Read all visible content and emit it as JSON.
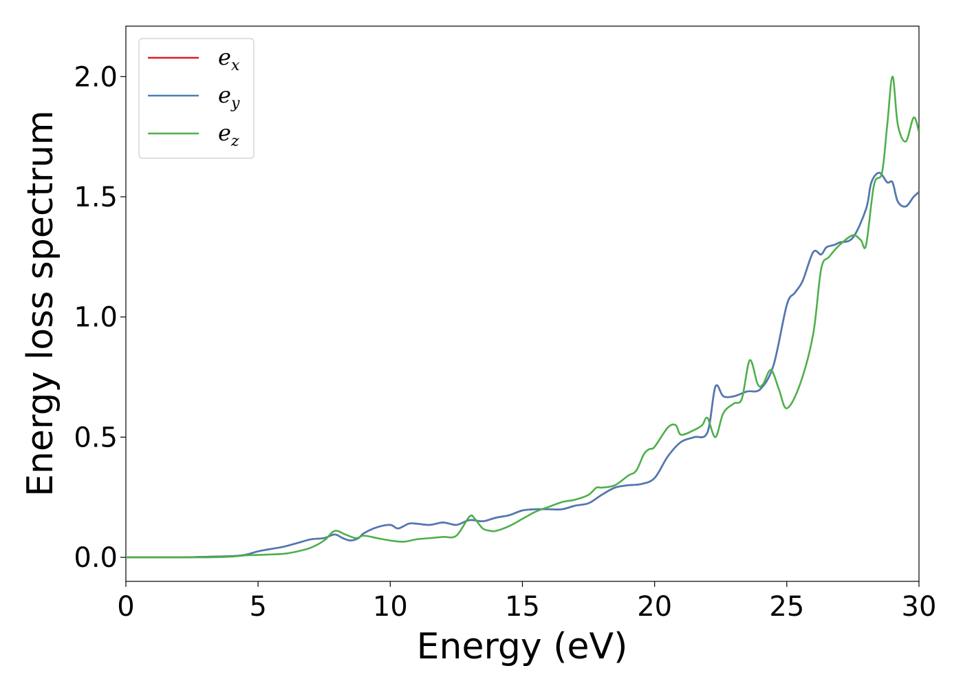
{
  "chart_data": {
    "type": "line",
    "title": "",
    "xlabel": "Energy (eV)",
    "ylabel": "Energy loss spectrum",
    "xlim": [
      0,
      30
    ],
    "ylim": [
      -0.1,
      2.21
    ],
    "xticks": [
      0,
      5,
      10,
      15,
      20,
      25,
      30
    ],
    "yticks": [
      0.0,
      0.5,
      1.0,
      1.5,
      2.0
    ],
    "xtick_labels": [
      "0",
      "5",
      "10",
      "15",
      "20",
      "25",
      "30"
    ],
    "ytick_labels": [
      "0.0",
      "0.5",
      "1.0",
      "1.5",
      "2.0"
    ],
    "grid": false,
    "legend_position": "top-left",
    "series": [
      {
        "name": "e_x",
        "legend_base": "e",
        "legend_sub": "x",
        "color": "#e41a1c",
        "x": [
          0,
          2,
          3,
          4,
          4.5,
          5,
          5.5,
          6,
          6.5,
          7,
          7.5,
          7.9,
          8.2,
          8.5,
          8.8,
          9,
          9.5,
          10,
          10.3,
          10.7,
          11,
          11.5,
          12,
          12.5,
          13,
          13.5,
          14,
          14.5,
          15,
          15.5,
          16,
          16.5,
          17,
          17.5,
          18,
          18.5,
          19,
          19.5,
          20,
          20.5,
          21,
          21.5,
          22,
          22.3,
          22.6,
          23,
          23.5,
          24,
          24.5,
          25,
          25.3,
          25.6,
          26,
          26.3,
          26.5,
          26.8,
          27,
          27.5,
          28,
          28.2,
          28.5,
          28.8,
          29,
          29.2,
          29.5,
          29.8,
          30
        ],
        "y": [
          0.0,
          0.0,
          0.002,
          0.005,
          0.01,
          0.025,
          0.035,
          0.045,
          0.06,
          0.075,
          0.08,
          0.095,
          0.08,
          0.07,
          0.08,
          0.1,
          0.125,
          0.135,
          0.12,
          0.14,
          0.14,
          0.135,
          0.145,
          0.135,
          0.155,
          0.15,
          0.165,
          0.175,
          0.195,
          0.2,
          0.2,
          0.2,
          0.215,
          0.225,
          0.26,
          0.29,
          0.3,
          0.305,
          0.33,
          0.42,
          0.48,
          0.5,
          0.52,
          0.71,
          0.67,
          0.67,
          0.69,
          0.7,
          0.8,
          1.05,
          1.1,
          1.15,
          1.27,
          1.26,
          1.29,
          1.3,
          1.31,
          1.33,
          1.45,
          1.56,
          1.6,
          1.56,
          1.56,
          1.48,
          1.46,
          1.5,
          1.52
        ]
      },
      {
        "name": "e_y",
        "legend_base": "e",
        "legend_sub": "y",
        "color": "#4a7bb7",
        "x": [
          0,
          2,
          3,
          4,
          4.5,
          5,
          5.5,
          6,
          6.5,
          7,
          7.5,
          7.9,
          8.2,
          8.5,
          8.8,
          9,
          9.5,
          10,
          10.3,
          10.7,
          11,
          11.5,
          12,
          12.5,
          13,
          13.5,
          14,
          14.5,
          15,
          15.5,
          16,
          16.5,
          17,
          17.5,
          18,
          18.5,
          19,
          19.5,
          20,
          20.5,
          21,
          21.5,
          22,
          22.3,
          22.6,
          23,
          23.5,
          24,
          24.5,
          25,
          25.3,
          25.6,
          26,
          26.3,
          26.5,
          26.8,
          27,
          27.5,
          28,
          28.2,
          28.5,
          28.8,
          29,
          29.2,
          29.5,
          29.8,
          30
        ],
        "y": [
          0.0,
          0.0,
          0.002,
          0.005,
          0.01,
          0.025,
          0.035,
          0.045,
          0.06,
          0.075,
          0.08,
          0.095,
          0.08,
          0.07,
          0.08,
          0.1,
          0.125,
          0.135,
          0.12,
          0.14,
          0.14,
          0.135,
          0.145,
          0.135,
          0.155,
          0.15,
          0.165,
          0.175,
          0.195,
          0.2,
          0.2,
          0.2,
          0.215,
          0.225,
          0.26,
          0.29,
          0.3,
          0.305,
          0.33,
          0.42,
          0.48,
          0.5,
          0.52,
          0.71,
          0.67,
          0.67,
          0.69,
          0.7,
          0.8,
          1.05,
          1.1,
          1.15,
          1.27,
          1.26,
          1.29,
          1.3,
          1.31,
          1.33,
          1.45,
          1.56,
          1.6,
          1.56,
          1.56,
          1.48,
          1.46,
          1.5,
          1.52
        ]
      },
      {
        "name": "e_z",
        "legend_base": "e",
        "legend_sub": "z",
        "color": "#4daf4a",
        "x": [
          0,
          2,
          3,
          4,
          4.5,
          5,
          5.5,
          6,
          6.5,
          7,
          7.5,
          7.9,
          8.3,
          8.7,
          9,
          9.5,
          10,
          10.5,
          11,
          11.5,
          12,
          12.5,
          13,
          13.2,
          13.5,
          13.8,
          14,
          14.5,
          15,
          15.5,
          16,
          16.5,
          17,
          17.5,
          17.8,
          18,
          18.5,
          19,
          19.3,
          19.6,
          19.8,
          20,
          20.5,
          20.8,
          21,
          21.5,
          21.8,
          22,
          22.3,
          22.6,
          23,
          23.3,
          23.6,
          23.9,
          24.1,
          24.4,
          24.7,
          25,
          25.5,
          26,
          26.3,
          26.6,
          27,
          27.5,
          27.8,
          28,
          28.3,
          28.6,
          28.8,
          29,
          29.2,
          29.5,
          29.8,
          30
        ],
        "y": [
          0.0,
          0.0,
          0.0,
          0.003,
          0.008,
          0.01,
          0.012,
          0.015,
          0.025,
          0.04,
          0.07,
          0.11,
          0.095,
          0.08,
          0.09,
          0.08,
          0.07,
          0.065,
          0.075,
          0.08,
          0.085,
          0.09,
          0.17,
          0.16,
          0.12,
          0.11,
          0.11,
          0.13,
          0.16,
          0.19,
          0.21,
          0.23,
          0.24,
          0.26,
          0.29,
          0.29,
          0.3,
          0.34,
          0.36,
          0.43,
          0.45,
          0.46,
          0.54,
          0.55,
          0.51,
          0.53,
          0.55,
          0.58,
          0.5,
          0.6,
          0.64,
          0.66,
          0.82,
          0.72,
          0.72,
          0.78,
          0.7,
          0.62,
          0.72,
          0.93,
          1.2,
          1.25,
          1.3,
          1.34,
          1.32,
          1.3,
          1.55,
          1.6,
          1.8,
          2.0,
          1.8,
          1.73,
          1.83,
          1.77
        ]
      }
    ]
  }
}
